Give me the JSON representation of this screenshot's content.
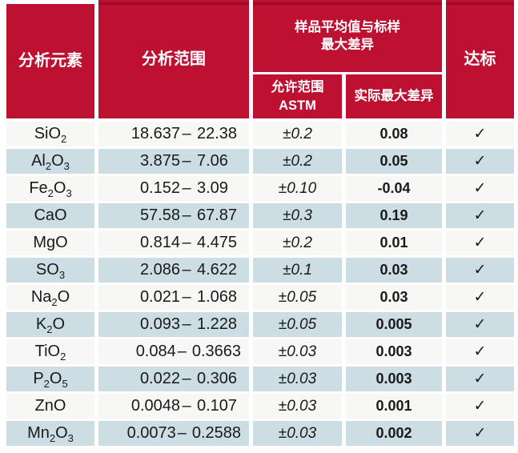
{
  "table": {
    "header": {
      "element": "分析元素",
      "range": "分析范围",
      "group_line1": "样品平均值与标样",
      "group_line2": "最大差异",
      "astm_line1": "允许范围",
      "astm_line2": "ASTM",
      "actual": "实际最大差异",
      "pass": "达标"
    },
    "range_separator": "–",
    "check_symbol": "✓",
    "colors": {
      "header_red": "#be1132",
      "header_red_dark": "#9a0c29",
      "row_light": "#f7f7f6",
      "row_alt": "#cddde4"
    },
    "rows": [
      {
        "formula": "SiO_2",
        "min": "18.637",
        "max": "22.38",
        "astm": "±0.2",
        "actual": "0.08",
        "pass": true
      },
      {
        "formula": "Al_2O_3",
        "min": "3.875",
        "max": "7.06",
        "astm": "±0.2",
        "actual": "0.05",
        "pass": true
      },
      {
        "formula": "Fe_2O_3",
        "min": "0.152",
        "max": "3.09",
        "astm": "±0.10",
        "actual": "-0.04",
        "pass": true
      },
      {
        "formula": "CaO",
        "min": "57.58",
        "max": "67.87",
        "astm": "±0.3",
        "actual": "0.19",
        "pass": true
      },
      {
        "formula": "MgO",
        "min": "0.814",
        "max": "4.475",
        "astm": "±0.2",
        "actual": "0.01",
        "pass": true
      },
      {
        "formula": "SO_3",
        "min": "2.086",
        "max": "4.622",
        "astm": "±0.1",
        "actual": "0.03",
        "pass": true
      },
      {
        "formula": "Na_2O",
        "min": "0.021",
        "max": "1.068",
        "astm": "±0.05",
        "actual": "0.03",
        "pass": true
      },
      {
        "formula": "K_2O",
        "min": "0.093",
        "max": "1.228",
        "astm": "±0.05",
        "actual": "0.005",
        "pass": true
      },
      {
        "formula": "TiO_2",
        "min": "0.084",
        "max": "0.3663",
        "astm": "±0.03",
        "actual": "0.003",
        "pass": true
      },
      {
        "formula": "P_2O_5",
        "min": "0.022",
        "max": "0.306",
        "astm": "±0.03",
        "actual": "0.003",
        "pass": true
      },
      {
        "formula": "ZnO",
        "min": "0.0048",
        "max": "0.107",
        "astm": "±0.03",
        "actual": "0.001",
        "pass": true
      },
      {
        "formula": "Mn_2O_3",
        "min": "0.0073",
        "max": "0.2588",
        "astm": "±0.03",
        "actual": "0.002",
        "pass": true
      }
    ]
  }
}
